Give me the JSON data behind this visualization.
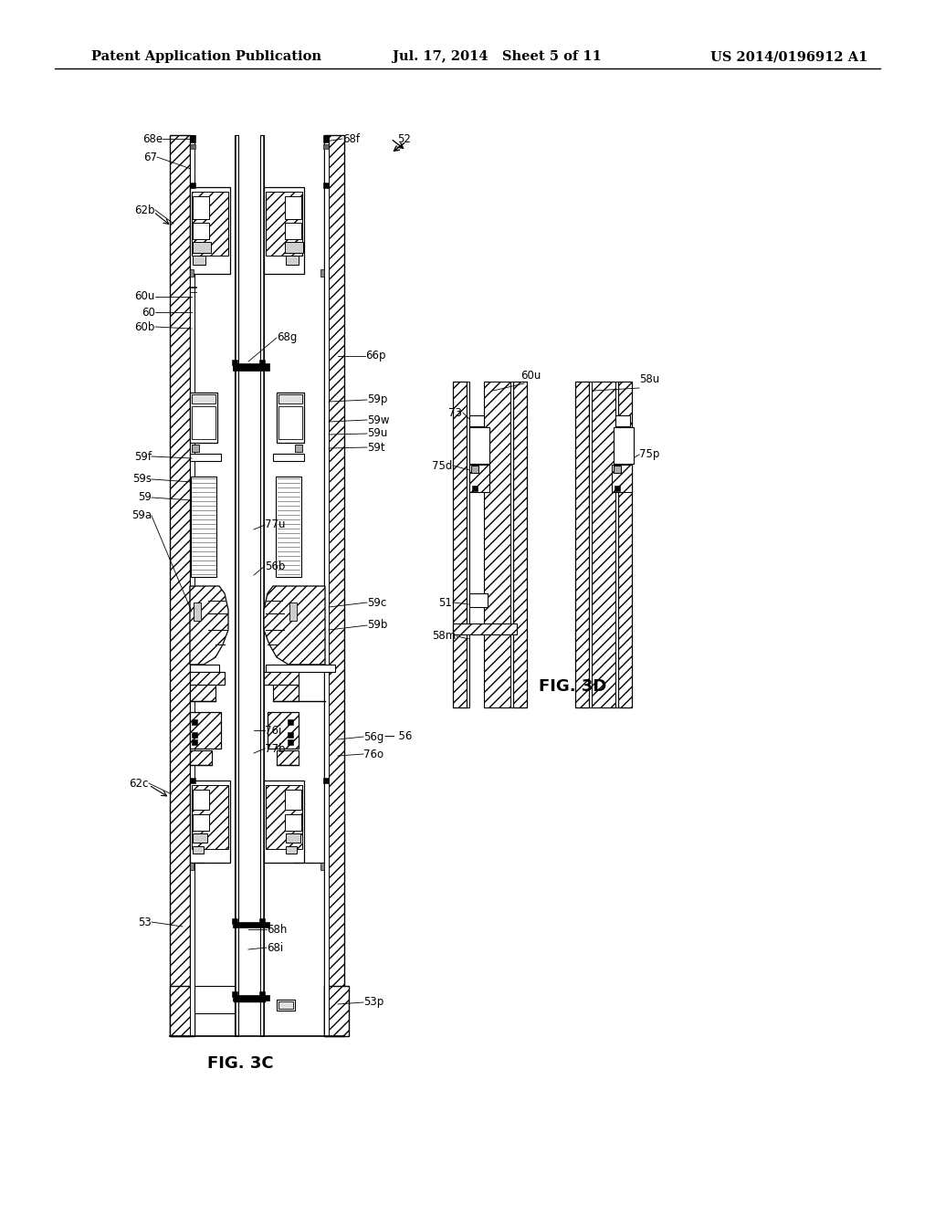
{
  "bg_color": "#ffffff",
  "title_left": "Patent Application Publication",
  "title_mid": "Jul. 17, 2014   Sheet 5 of 11",
  "title_right": "US 2014/0196912 A1",
  "fig3c_label": "FIG. 3C",
  "fig3d_label": "FIG. 3D",
  "title_fontsize": 10.5,
  "label_fontsize": 8.5,
  "fig_label_fontsize": 13
}
